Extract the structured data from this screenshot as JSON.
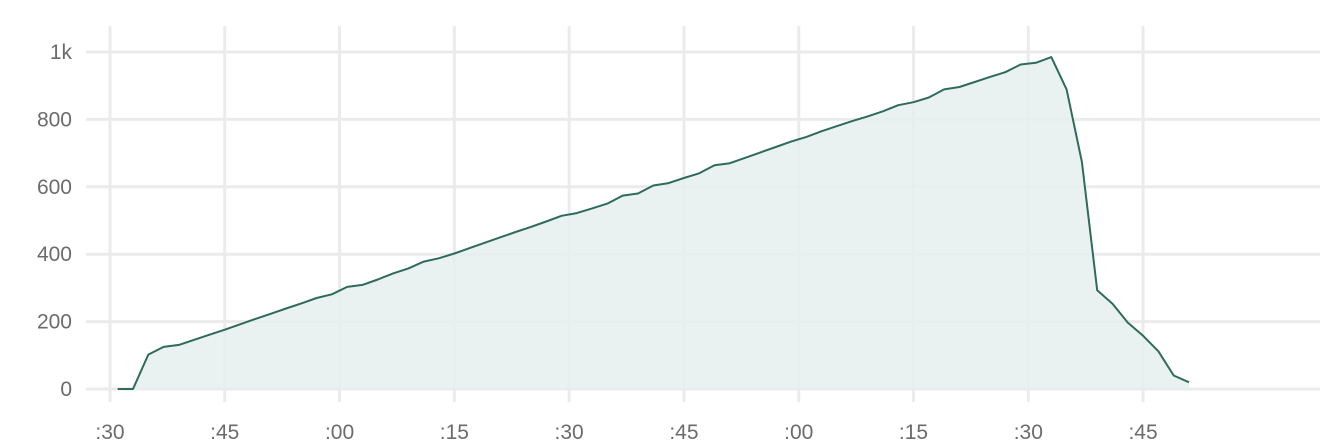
{
  "chart_data": {
    "type": "area",
    "title": "",
    "xlabel": "",
    "ylabel": "",
    "ylim": [
      0,
      1000
    ],
    "xlim": [
      0,
      82
    ],
    "grid": true,
    "legend": "none",
    "colors": {
      "line": "#2e6b5a",
      "fill": "#e5f0ee",
      "grid": "#ebebeb",
      "tick_text": "#6b6b6b"
    },
    "y_ticks": [
      {
        "value": 0,
        "label": "0"
      },
      {
        "value": 200,
        "label": "200"
      },
      {
        "value": 400,
        "label": "400"
      },
      {
        "value": 600,
        "label": "600"
      },
      {
        "value": 800,
        "label": "800"
      },
      {
        "value": 1000,
        "label": "1k"
      }
    ],
    "x_ticks": [
      {
        "value": 0,
        "label": ":30"
      },
      {
        "value": 7.5,
        "label": ":45"
      },
      {
        "value": 15,
        "label": ":00"
      },
      {
        "value": 22.5,
        "label": ":15"
      },
      {
        "value": 30,
        "label": ":30"
      },
      {
        "value": 37.5,
        "label": ":45"
      },
      {
        "value": 45,
        "label": ":00"
      },
      {
        "value": 52.5,
        "label": ":15"
      },
      {
        "value": 60,
        "label": ":30"
      },
      {
        "value": 67.5,
        "label": ":45"
      }
    ],
    "series": [
      {
        "x": [
          0.5,
          1.5,
          2.5,
          3.5,
          4.5,
          5.5,
          6.5,
          7.5,
          8.5,
          9.5,
          10.5,
          11.5,
          12.5,
          13.5,
          14.5,
          15.5,
          16.5,
          17.5,
          18.5,
          19.5,
          20.5,
          21.5,
          22.5,
          23.5,
          24.5,
          25.5,
          26.5,
          27.5,
          28.5,
          29.5,
          30.5,
          31.5,
          32.5,
          33.5,
          34.5,
          35.5,
          36.5,
          37.5,
          38.5,
          39.5,
          40.5,
          41.5,
          42.5,
          43.5,
          44.5,
          45.5,
          46.5,
          47.5,
          48.5,
          49.5,
          50.5,
          51.5,
          52.5,
          53.5,
          54.5,
          55.5,
          56.5,
          57.5,
          58.5,
          59.5,
          60.5,
          61.5,
          62.5,
          63.5,
          64.5,
          65.5,
          66.5,
          67.5,
          68.5,
          69.5,
          70.5
        ],
        "values": [
          0,
          0,
          102,
          125,
          131,
          146,
          161,
          176,
          192,
          208,
          223,
          239,
          254,
          270,
          281,
          303,
          309,
          325,
          343,
          358,
          378,
          388,
          402,
          418,
          434,
          450,
          466,
          481,
          497,
          514,
          522,
          536,
          550,
          574,
          580,
          604,
          611,
          626,
          640,
          664,
          670,
          686,
          702,
          718,
          734,
          748,
          765,
          780,
          795,
          809,
          824,
          842,
          851,
          865,
          889,
          896,
          911,
          926,
          940,
          963,
          968,
          985,
          889,
          674,
          293,
          253,
          197,
          158,
          112,
          40,
          20
        ]
      }
    ]
  }
}
